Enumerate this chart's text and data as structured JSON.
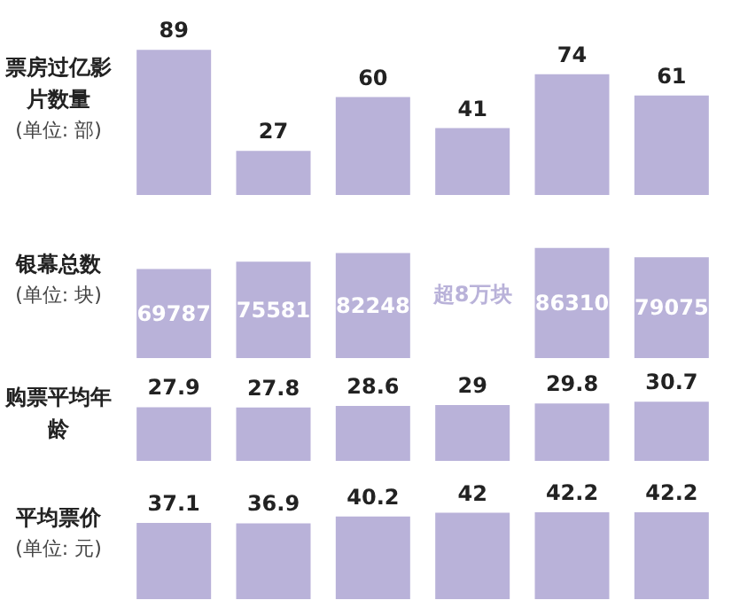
{
  "chart_data": [
    {
      "type": "bar",
      "title": "票房过亿影片数量",
      "subtitle": "(单位: 部)",
      "categories": [
        null,
        null,
        null,
        null,
        null,
        null
      ],
      "values": [
        89,
        27,
        60,
        41,
        74,
        61
      ],
      "color": "#b9b2d9",
      "data_labels": true
    },
    {
      "type": "bar",
      "title": "银幕总数",
      "subtitle": "(单位: 块)",
      "categories": [
        null,
        null,
        null,
        null,
        null,
        null
      ],
      "values": [
        69787,
        75581,
        82248,
        null,
        86310,
        79075
      ],
      "value_labels": [
        "69787",
        "75581",
        "82248",
        "超8万块",
        "86310",
        "79075"
      ],
      "color": "#b9b2d9"
    },
    {
      "type": "bar",
      "title": "购票平均年龄",
      "categories": [
        null,
        null,
        null,
        null,
        null,
        null
      ],
      "values": [
        27.9,
        27.8,
        28.6,
        29,
        29.8,
        30.7
      ],
      "color": "#b9b2d9",
      "data_labels": true
    },
    {
      "type": "bar",
      "title": "平均票价",
      "subtitle": "(单位: 元)",
      "categories": [
        null,
        null,
        null,
        null,
        null,
        null
      ],
      "values": [
        37.1,
        36.9,
        40.2,
        42,
        42.2,
        42.2
      ],
      "color": "#b9b2d9",
      "data_labels": true
    }
  ]
}
